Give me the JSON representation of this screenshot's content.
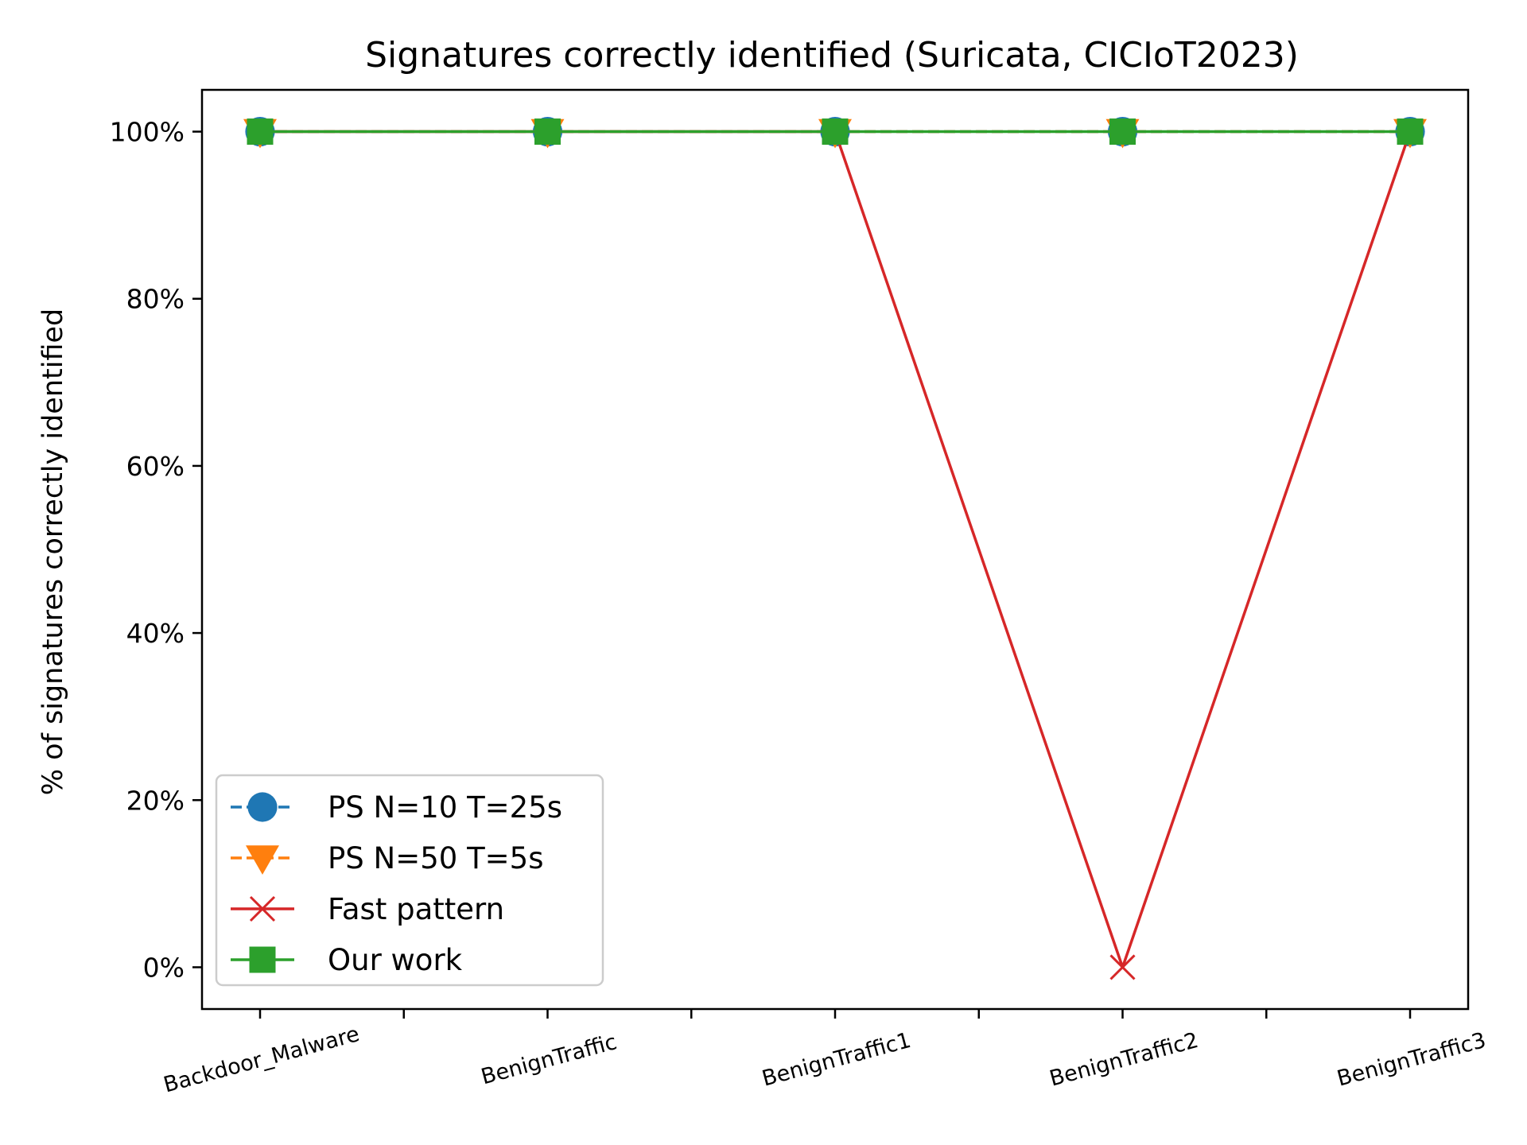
{
  "chart_data": {
    "type": "line",
    "title": "Signatures correctly identified (Suricata, CICIoT2023)",
    "xlabel": "",
    "ylabel": "% of signatures correctly identified",
    "categories": [
      "Backdoor_Malware",
      "BenignTraffic",
      "BenignTraffic1",
      "BenignTraffic2",
      "BenignTraffic3"
    ],
    "yticks": [
      "0%",
      "20%",
      "40%",
      "60%",
      "80%",
      "100%"
    ],
    "ylim": [
      -5,
      105
    ],
    "grid": false,
    "legend_position": "lower-left",
    "series": [
      {
        "name": "PS N=10 T=25s",
        "values": [
          100,
          100,
          100,
          100,
          100
        ],
        "color": "#1f77b4",
        "marker": "circle",
        "linestyle": "dashed"
      },
      {
        "name": "PS N=50 T=5s",
        "values": [
          100,
          100,
          100,
          100,
          100
        ],
        "color": "#ff7f0e",
        "marker": "triangle-down",
        "linestyle": "dashed"
      },
      {
        "name": "Fast pattern",
        "values": [
          100,
          100,
          100,
          0,
          100
        ],
        "color": "#d62728",
        "marker": "x",
        "linestyle": "solid"
      },
      {
        "name": "Our work",
        "values": [
          100,
          100,
          100,
          100,
          100
        ],
        "color": "#2ca02c",
        "marker": "square",
        "linestyle": "solid"
      }
    ]
  }
}
